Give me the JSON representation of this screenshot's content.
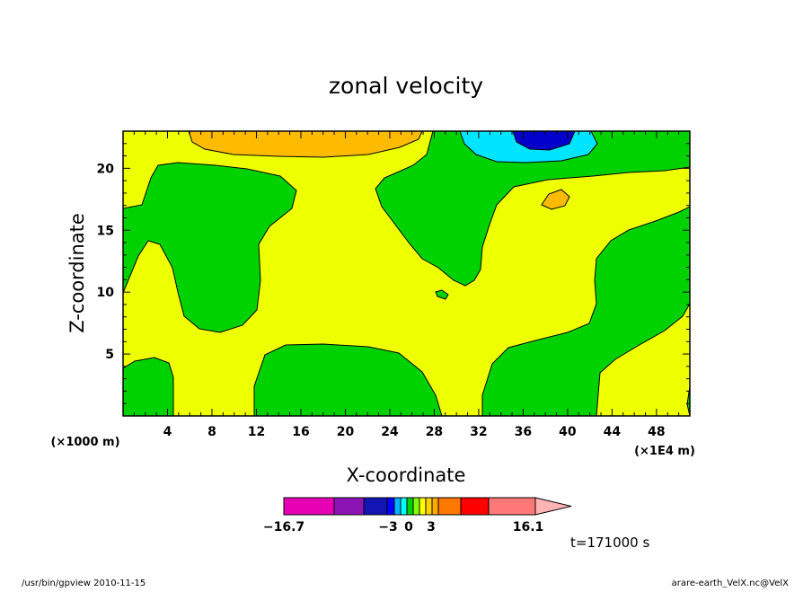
{
  "chart_data": {
    "type": "heatmap",
    "subtype": "filled-contour",
    "title": "zonal velocity",
    "xlabel": "X-coordinate",
    "ylabel": "Z-coordinate",
    "x_unit_left": "(×1000 m)",
    "x_unit_right": "(×1E4 m)",
    "xlim": [
      0,
      51
    ],
    "ylim": [
      0,
      23
    ],
    "x_ticks": [
      "4",
      "8",
      "12",
      "16",
      "20",
      "24",
      "28",
      "32",
      "36",
      "40",
      "44",
      "48"
    ],
    "x_tick_values": [
      4,
      8,
      12,
      16,
      20,
      24,
      28,
      32,
      36,
      40,
      44,
      48
    ],
    "y_ticks": [
      "5",
      "10",
      "15",
      "20"
    ],
    "y_tick_values": [
      5,
      10,
      15,
      20
    ],
    "colorbar": {
      "tick_labels": [
        "−16.7",
        "−3",
        "0",
        "3",
        "16.1"
      ],
      "min": -16.7,
      "max": 16.1,
      "colors": [
        "#e600b4",
        "#8c14b4",
        "#1414b4",
        "#0000ff",
        "#00b4ff",
        "#00ffff",
        "#00d200",
        "#7fff00",
        "#ffff00",
        "#ffd200",
        "#ffaa00",
        "#ff7800",
        "#ff0000",
        "#ff7878",
        "#ffb4b4"
      ]
    },
    "background_color": "#eeff00",
    "regions": [
      {
        "name": "green",
        "color": "#00d200"
      },
      {
        "name": "orange",
        "color": "#ffbb00"
      },
      {
        "name": "cyan",
        "color": "#00e5ff"
      },
      {
        "name": "blue",
        "color": "#0000cc"
      }
    ],
    "time_label": "t=171000 s",
    "footer_left": "/usr/bin/gpview   2010-11-15",
    "footer_right": "arare-earth_VelX.nc@VelX"
  }
}
